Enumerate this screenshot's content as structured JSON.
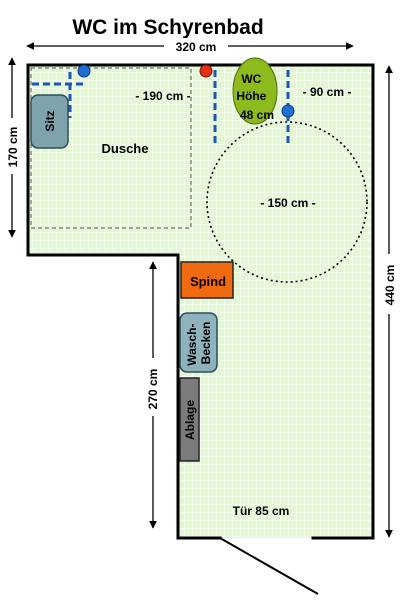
{
  "title": "WC im Schyrenbad",
  "dimensions": {
    "width_total": "320 cm",
    "height_left": "170 cm",
    "height_right": "440 cm",
    "height_lower": "270 cm",
    "shower_width": "- 190 cm -",
    "wc_side": "- 90 cm -",
    "turning_circle": "- 150 cm -",
    "door": "Tür 85 cm"
  },
  "rooms": {
    "shower": "Dusche"
  },
  "fixtures": {
    "seat": "Sitz",
    "wc_line1": "WC",
    "wc_line2": "Höhe",
    "wc_line3": "48 cm",
    "locker": "Spind",
    "sink_line1": "Wasch-",
    "sink_line2": "Becken",
    "shelf": "Ablage"
  },
  "colors": {
    "floor": "#e3f7d5",
    "grid": "#ffffff",
    "wc": "#8dbb1e",
    "seat": "#7fa3ac",
    "locker": "#f26a10",
    "sink": "#8fb3bd",
    "shelf": "#7b7b7b",
    "grab_bar": "#1d56b8",
    "button_blue": "#1e6fd4",
    "button_red": "#e53015"
  }
}
